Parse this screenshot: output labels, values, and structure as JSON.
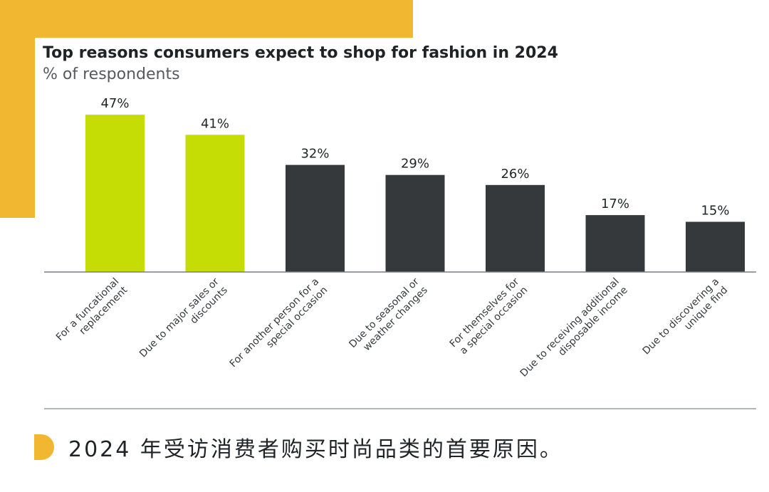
{
  "chart_data": {
    "type": "bar",
    "title": "Top reasons consumers expect to shop for fashion in 2024",
    "subtitle": "% of respondents",
    "categories": [
      [
        "For a funcational",
        "replacement"
      ],
      [
        "Due to major sales or",
        "discounts"
      ],
      [
        "For another person for a",
        "special occasion"
      ],
      [
        "Due to seasonal or",
        "weather changes"
      ],
      [
        "For themselves for",
        "a special occasion"
      ],
      [
        "Due to receiving additional",
        "disposable income"
      ],
      [
        "Due to discovering a",
        "unique find"
      ]
    ],
    "values": [
      47,
      41,
      32,
      29,
      26,
      17,
      15
    ],
    "value_labels": [
      "47%",
      "41%",
      "32%",
      "29%",
      "26%",
      "17%",
      "15%"
    ],
    "highlighted": [
      true,
      true,
      false,
      false,
      false,
      false,
      false
    ],
    "colors": {
      "highlight": "#C5DC05",
      "default": "#35393C",
      "accent": "#F2B731"
    },
    "ylim": [
      0,
      50
    ],
    "grid": false,
    "legend": "none"
  },
  "caption": {
    "text": "2024 年受访消费者购买时尚品类的首要原因。"
  }
}
